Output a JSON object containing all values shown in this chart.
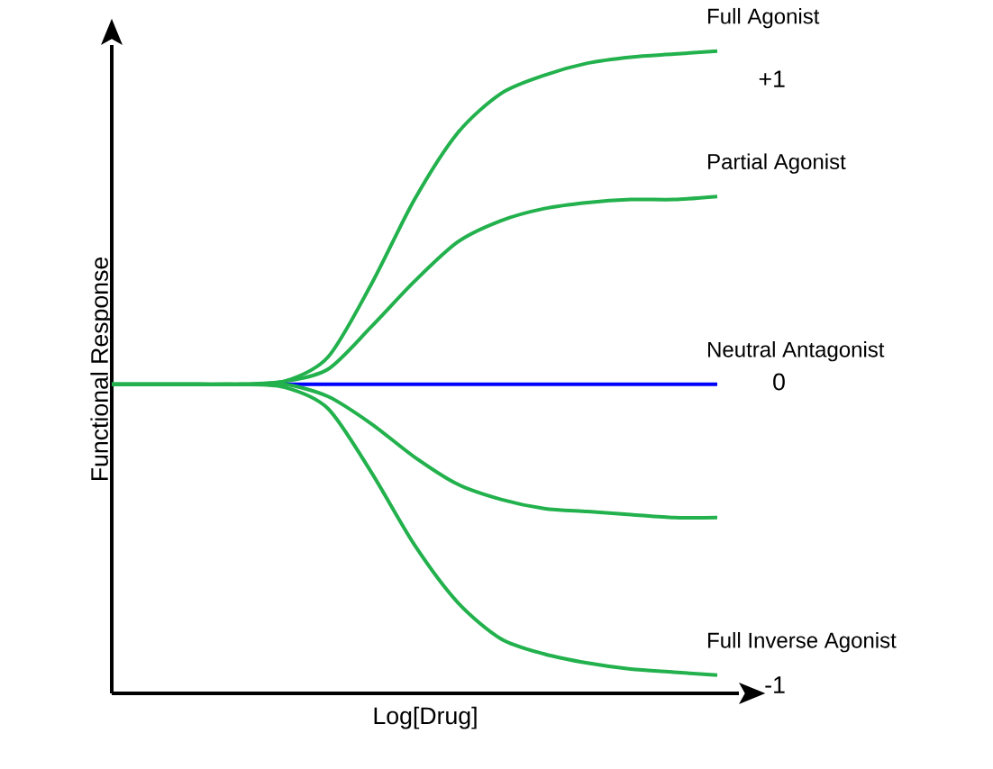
{
  "chart_data": {
    "type": "line",
    "xlabel": "Log[Drug]",
    "ylabel": "Functional Response",
    "categories": [
      null,
      null,
      null,
      null,
      null,
      null,
      null,
      null,
      null,
      null,
      null,
      null,
      null,
      null,
      null
    ],
    "series": [
      {
        "name": "Full Agonist",
        "color": "#22b14c",
        "values": [
          0,
          0,
          0,
          0,
          0.01,
          0.09,
          0.33,
          0.61,
          0.83,
          0.96,
          1.02,
          1.06,
          1.08,
          1.09,
          1.1
        ]
      },
      {
        "name": "Partial Agonist",
        "color": "#22b14c",
        "values": [
          0,
          0,
          0,
          0,
          0.01,
          0.05,
          0.19,
          0.34,
          0.47,
          0.54,
          0.58,
          0.6,
          0.61,
          0.61,
          0.62
        ]
      },
      {
        "name": "Neutral Antagonist",
        "color": "#0000ff",
        "values": [
          null,
          null,
          null,
          null,
          0,
          0,
          0,
          0,
          0,
          0,
          0,
          0,
          0,
          0,
          0
        ]
      },
      {
        "color": "#22b14c",
        "values": [
          0,
          0,
          0,
          0,
          0,
          -0.04,
          -0.13,
          -0.24,
          -0.33,
          -0.38,
          -0.41,
          -0.42,
          -0.43,
          -0.44,
          -0.44
        ]
      },
      {
        "name": "Full Inverse Agonist",
        "color": "#22b14c",
        "values": [
          0,
          0,
          0,
          0,
          -0.01,
          -0.08,
          -0.29,
          -0.53,
          -0.72,
          -0.84,
          -0.89,
          -0.92,
          -0.94,
          -0.95,
          -0.96
        ]
      }
    ],
    "ylim": [
      -1.02,
      1.12
    ],
    "yticks": [
      {
        "value": 1,
        "label": "+1"
      },
      0,
      -1
    ],
    "grid": false,
    "legend": false,
    "marker": "none",
    "line_style": "solid"
  }
}
